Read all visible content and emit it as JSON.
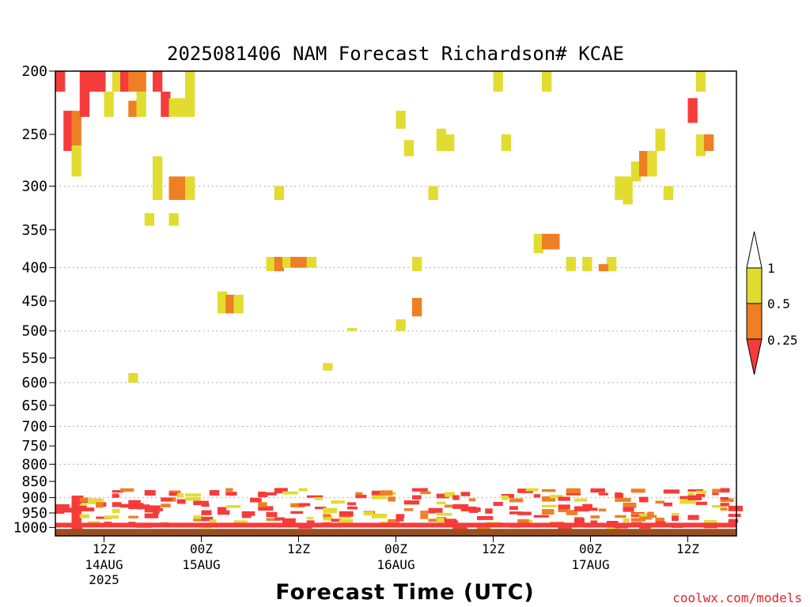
{
  "colors": {
    "lt_0_25": "#f63b3b",
    "0_25_0_5": "#ee7f24",
    "0_5_1": "#e2dc30",
    "ground": "#9c4f1e",
    "gridline": "#999999"
  },
  "chart_data": {
    "type": "heatmap",
    "title": "2025081406 NAM Forecast Richardson# KCAE",
    "xlabel": "Forecast Time (UTC)",
    "ylabel": "",
    "credit": "coolwx.com/models",
    "y_scale": "log (pressure, hPa, decreasing upward)",
    "ylim": [
      1030,
      200
    ],
    "yticks": [
      200,
      250,
      300,
      350,
      400,
      450,
      500,
      550,
      600,
      650,
      700,
      750,
      800,
      850,
      900,
      950,
      1000
    ],
    "y_gridlines": [
      300,
      400,
      500,
      600,
      700,
      800,
      900
    ],
    "x_time_range": [
      "2025-08-14 06Z",
      "2025-08-17 18Z"
    ],
    "xticks": [
      {
        "time": "2025-08-14 12Z",
        "label": "12Z",
        "date": "14AUG",
        "year": "2025"
      },
      {
        "time": "2025-08-15 00Z",
        "label": "00Z",
        "date": "15AUG",
        "year": ""
      },
      {
        "time": "2025-08-15 12Z",
        "label": "12Z",
        "date": "",
        "year": ""
      },
      {
        "time": "2025-08-16 00Z",
        "label": "00Z",
        "date": "16AUG",
        "year": ""
      },
      {
        "time": "2025-08-16 12Z",
        "label": "12Z",
        "date": "",
        "year": ""
      },
      {
        "time": "2025-08-17 00Z",
        "label": "00Z",
        "date": "17AUG",
        "year": ""
      },
      {
        "time": "2025-08-17 12Z",
        "label": "12Z",
        "date": "",
        "year": ""
      }
    ],
    "legend": {
      "placement": "right",
      "boundaries": [
        "1",
        "0.5",
        "0.25"
      ],
      "classes": [
        "> 1 (none)",
        "0.5–1",
        "0.25–0.5",
        "< 0.25"
      ]
    },
    "cells": [
      {
        "t": "2025-08-14 06Z",
        "p": [
          200,
          215
        ],
        "c": "lt_0_25"
      },
      {
        "t": "2025-08-14 07Z",
        "p": [
          230,
          265
        ],
        "c": "lt_0_25"
      },
      {
        "t": "2025-08-14 08Z",
        "p": [
          230,
          260
        ],
        "c": "0_25_0_5"
      },
      {
        "t": "2025-08-14 08Z",
        "p": [
          260,
          290
        ],
        "c": "0_5_1"
      },
      {
        "t": "2025-08-14 09Z",
        "p": [
          200,
          235
        ],
        "c": "lt_0_25"
      },
      {
        "t": "2025-08-14 10Z",
        "p": [
          200,
          215
        ],
        "c": "lt_0_25"
      },
      {
        "t": "2025-08-14 11Z",
        "p": [
          200,
          215
        ],
        "c": "lt_0_25"
      },
      {
        "t": "2025-08-14 12Z",
        "p": [
          215,
          235
        ],
        "c": "0_5_1"
      },
      {
        "t": "2025-08-14 13Z",
        "p": [
          200,
          215
        ],
        "c": "0_5_1"
      },
      {
        "t": "2025-08-14 14Z",
        "p": [
          200,
          215
        ],
        "c": "lt_0_25"
      },
      {
        "t": "2025-08-14 15Z",
        "p": [
          200,
          215
        ],
        "c": "0_25_0_5"
      },
      {
        "t": "2025-08-14 16Z",
        "p": [
          200,
          215
        ],
        "c": "0_25_0_5"
      },
      {
        "t": "2025-08-14 15Z",
        "p": [
          222,
          235
        ],
        "c": "0_25_0_5"
      },
      {
        "t": "2025-08-14 16Z",
        "p": [
          215,
          235
        ],
        "c": "0_5_1"
      },
      {
        "t": "2025-08-14 18Z",
        "p": [
          200,
          215
        ],
        "c": "lt_0_25"
      },
      {
        "t": "2025-08-14 19Z",
        "p": [
          215,
          235
        ],
        "c": "lt_0_25"
      },
      {
        "t": "2025-08-14 20Z",
        "p": [
          220,
          235
        ],
        "c": "0_5_1"
      },
      {
        "t": "2025-08-14 21Z",
        "p": [
          220,
          235
        ],
        "c": "0_5_1"
      },
      {
        "t": "2025-08-14 22Z",
        "p": [
          200,
          235
        ],
        "c": "0_5_1"
      },
      {
        "t": "2025-08-14 18Z",
        "p": [
          270,
          315
        ],
        "c": "0_5_1"
      },
      {
        "t": "2025-08-14 20Z",
        "p": [
          290,
          315
        ],
        "c": "0_25_0_5"
      },
      {
        "t": "2025-08-14 21Z",
        "p": [
          290,
          315
        ],
        "c": "0_25_0_5"
      },
      {
        "t": "2025-08-14 22Z",
        "p": [
          290,
          315
        ],
        "c": "0_5_1"
      },
      {
        "t": "2025-08-14 17Z",
        "p": [
          330,
          345
        ],
        "c": "0_5_1"
      },
      {
        "t": "2025-08-14 20Z",
        "p": [
          330,
          345
        ],
        "c": "0_5_1"
      },
      {
        "t": "2025-08-14 15Z",
        "p": [
          580,
          600
        ],
        "c": "0_5_1"
      },
      {
        "t": "2025-08-14 08Z",
        "p": [
          900,
          1000
        ],
        "c": "lt_0_25"
      },
      {
        "t": "2025-08-15 02Z",
        "p": [
          435,
          470
        ],
        "c": "0_5_1"
      },
      {
        "t": "2025-08-15 03Z",
        "p": [
          440,
          470
        ],
        "c": "0_25_0_5"
      },
      {
        "t": "2025-08-15 04Z",
        "p": [
          440,
          470
        ],
        "c": "0_5_1"
      },
      {
        "t": "2025-08-15 08Z",
        "p": [
          385,
          405
        ],
        "c": "0_5_1"
      },
      {
        "t": "2025-08-15 09Z",
        "p": [
          385,
          405
        ],
        "c": "0_25_0_5"
      },
      {
        "t": "2025-08-15 10Z",
        "p": [
          385,
          400
        ],
        "c": "0_5_1"
      },
      {
        "t": "2025-08-15 11Z",
        "p": [
          385,
          400
        ],
        "c": "0_25_0_5"
      },
      {
        "t": "2025-08-15 12Z",
        "p": [
          385,
          400
        ],
        "c": "0_25_0_5"
      },
      {
        "t": "2025-08-15 13Z",
        "p": [
          385,
          400
        ],
        "c": "0_5_1"
      },
      {
        "t": "2025-08-15 09Z",
        "p": [
          300,
          315
        ],
        "c": "0_5_1"
      },
      {
        "t": "2025-08-15 15Z",
        "p": [
          560,
          575
        ],
        "c": "0_5_1"
      },
      {
        "t": "2025-08-15 18Z",
        "p": [
          495,
          500
        ],
        "c": "0_5_1"
      },
      {
        "t": "2025-08-16 00Z",
        "p": [
          480,
          500
        ],
        "c": "0_5_1"
      },
      {
        "t": "2025-08-16 00Z",
        "p": [
          230,
          245
        ],
        "c": "0_5_1"
      },
      {
        "t": "2025-08-16 01Z",
        "p": [
          255,
          270
        ],
        "c": "0_5_1"
      },
      {
        "t": "2025-08-16 02Z",
        "p": [
          385,
          405
        ],
        "c": "0_5_1"
      },
      {
        "t": "2025-08-16 02Z",
        "p": [
          445,
          475
        ],
        "c": "0_25_0_5"
      },
      {
        "t": "2025-08-16 04Z",
        "p": [
          300,
          315
        ],
        "c": "0_5_1"
      },
      {
        "t": "2025-08-16 05Z",
        "p": [
          245,
          265
        ],
        "c": "0_5_1"
      },
      {
        "t": "2025-08-16 06Z",
        "p": [
          250,
          265
        ],
        "c": "0_5_1"
      },
      {
        "t": "2025-08-16 12Z",
        "p": [
          200,
          215
        ],
        "c": "0_5_1"
      },
      {
        "t": "2025-08-16 13Z",
        "p": [
          250,
          265
        ],
        "c": "0_5_1"
      },
      {
        "t": "2025-08-16 17Z",
        "p": [
          355,
          380
        ],
        "c": "0_5_1"
      },
      {
        "t": "2025-08-16 18Z",
        "p": [
          355,
          375
        ],
        "c": "0_25_0_5"
      },
      {
        "t": "2025-08-16 19Z",
        "p": [
          355,
          375
        ],
        "c": "0_25_0_5"
      },
      {
        "t": "2025-08-16 18Z",
        "p": [
          200,
          215
        ],
        "c": "0_5_1"
      },
      {
        "t": "2025-08-16 21Z",
        "p": [
          385,
          405
        ],
        "c": "0_5_1"
      },
      {
        "t": "2025-08-16 23Z",
        "p": [
          385,
          405
        ],
        "c": "0_5_1"
      },
      {
        "t": "2025-08-17 02Z",
        "p": [
          385,
          405
        ],
        "c": "0_5_1"
      },
      {
        "t": "2025-08-17 01Z",
        "p": [
          395,
          405
        ],
        "c": "0_25_0_5"
      },
      {
        "t": "2025-08-17 03Z",
        "p": [
          290,
          315
        ],
        "c": "0_5_1"
      },
      {
        "t": "2025-08-17 04Z",
        "p": [
          290,
          320
        ],
        "c": "0_5_1"
      },
      {
        "t": "2025-08-17 05Z",
        "p": [
          275,
          295
        ],
        "c": "0_5_1"
      },
      {
        "t": "2025-08-17 06Z",
        "p": [
          265,
          290
        ],
        "c": "0_25_0_5"
      },
      {
        "t": "2025-08-17 07Z",
        "p": [
          265,
          290
        ],
        "c": "0_5_1"
      },
      {
        "t": "2025-08-17 08Z",
        "p": [
          245,
          265
        ],
        "c": "0_5_1"
      },
      {
        "t": "2025-08-17 09Z",
        "p": [
          300,
          315
        ],
        "c": "0_5_1"
      },
      {
        "t": "2025-08-17 12Z",
        "p": [
          220,
          240
        ],
        "c": "lt_0_25"
      },
      {
        "t": "2025-08-17 13Z",
        "p": [
          200,
          215
        ],
        "c": "0_5_1"
      },
      {
        "t": "2025-08-17 13Z",
        "p": [
          250,
          270
        ],
        "c": "0_5_1"
      },
      {
        "t": "2025-08-17 14Z",
        "p": [
          250,
          265
        ],
        "c": "0_25_0_5"
      }
    ],
    "boundary_layer": "Fragmented bands of Ri < 0.25, 0.25–0.5 and 0.5–1 between ~850 and 1000 hPa throughout the period",
    "ground_band": "Ground shown from about 1000 hPa to the bottom of the plot"
  }
}
